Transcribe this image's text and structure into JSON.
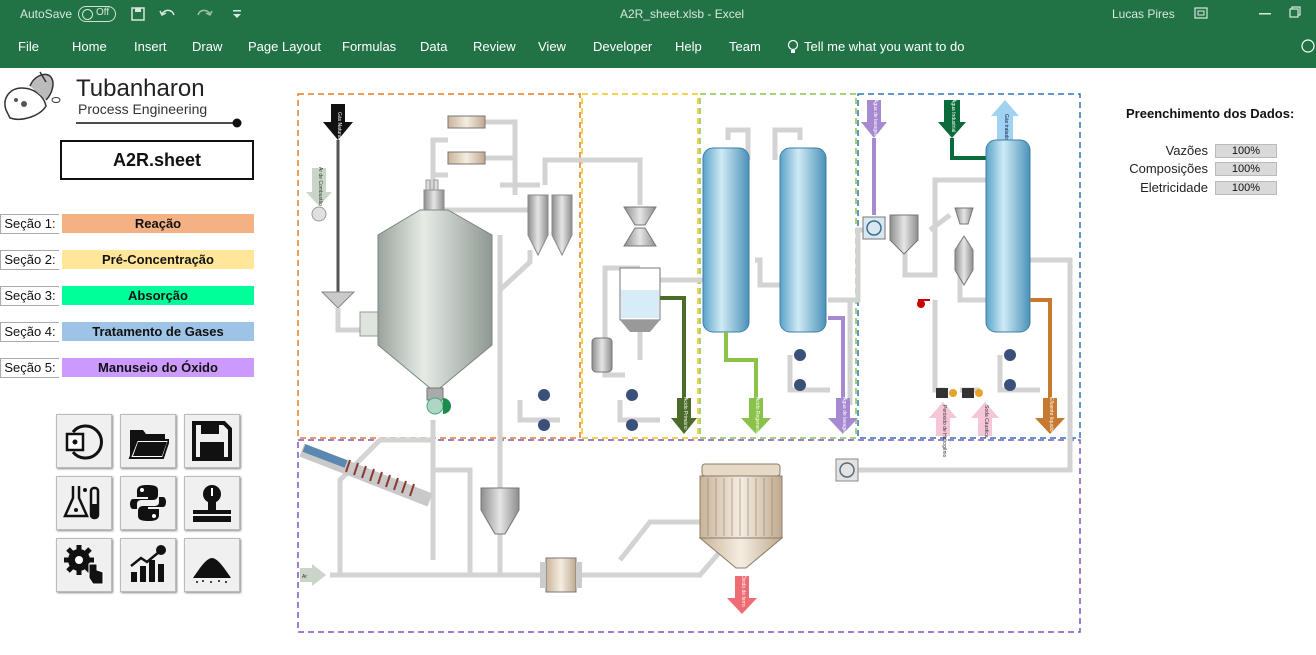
{
  "titlebar": {
    "autosave_label": "AutoSave",
    "autosave_state": "Off",
    "file_title": "A2R_sheet.xlsb  -  Excel",
    "user": "Lucas Pires"
  },
  "ribbon": {
    "tabs": [
      "File",
      "Home",
      "Insert",
      "Draw",
      "Page Layout",
      "Formulas",
      "Data",
      "Review",
      "View",
      "Developer",
      "Help",
      "Team"
    ],
    "tell_me": "Tell me what you want to do"
  },
  "logo": {
    "name": "Tubanharon",
    "subtitle": "Process Engineering"
  },
  "sheet_title": "A2R.sheet",
  "sections": [
    {
      "label": "Seção 1:",
      "name": "Reação",
      "color": "#f4b183"
    },
    {
      "label": "Seção 2:",
      "name": "Pré-Concentração",
      "color": "#ffe699"
    },
    {
      "label": "Seção 3:",
      "name": "Absorção",
      "color": "#00ff99"
    },
    {
      "label": "Seção 4:",
      "name": "Tratamento de Gases",
      "color": "#9dc3e6"
    },
    {
      "label": "Seção 5:",
      "name": "Manuseio do Óxido",
      "color": "#cc99ff"
    }
  ],
  "tools": [
    "reset-icon",
    "open-folder-icon",
    "save-icon",
    "lab-flask-icon",
    "python-icon",
    "scale-icon",
    "settings-touch-icon",
    "financial-chart-icon",
    "powder-pile-icon"
  ],
  "fill_status": {
    "title": "Preenchimento dos Dados:",
    "rows": [
      {
        "label": "Vazões",
        "value": "100%"
      },
      {
        "label": "Composições",
        "value": "100%"
      },
      {
        "label": "Eletricidade",
        "value": "100%"
      }
    ]
  },
  "diagram": {
    "section_colors": [
      "#e67e22",
      "#f1c40f",
      "#8bc34a",
      "#2e75b6",
      "#7e57c2"
    ],
    "streams": {
      "gas_natural": "Gás Natural",
      "ar_combustao": "Ar de Combustão",
      "ar": "Ar",
      "acido_primario": "Ácido Primário",
      "acido_regenerado": "Ácido Regenerado",
      "agua_lavagem_1": "Água de lavagem",
      "agua_lavagem_2": "Água de lavagem",
      "agua_industrial": "Água Industrial",
      "gas_tratado": "Gás tratado",
      "peroxido": "Peróxido de Hidrogênio",
      "soda_caustica": "Soda Cáustica",
      "efluente": "Efluente líquido",
      "oxido_ferro": "Óxido de ferro"
    }
  }
}
